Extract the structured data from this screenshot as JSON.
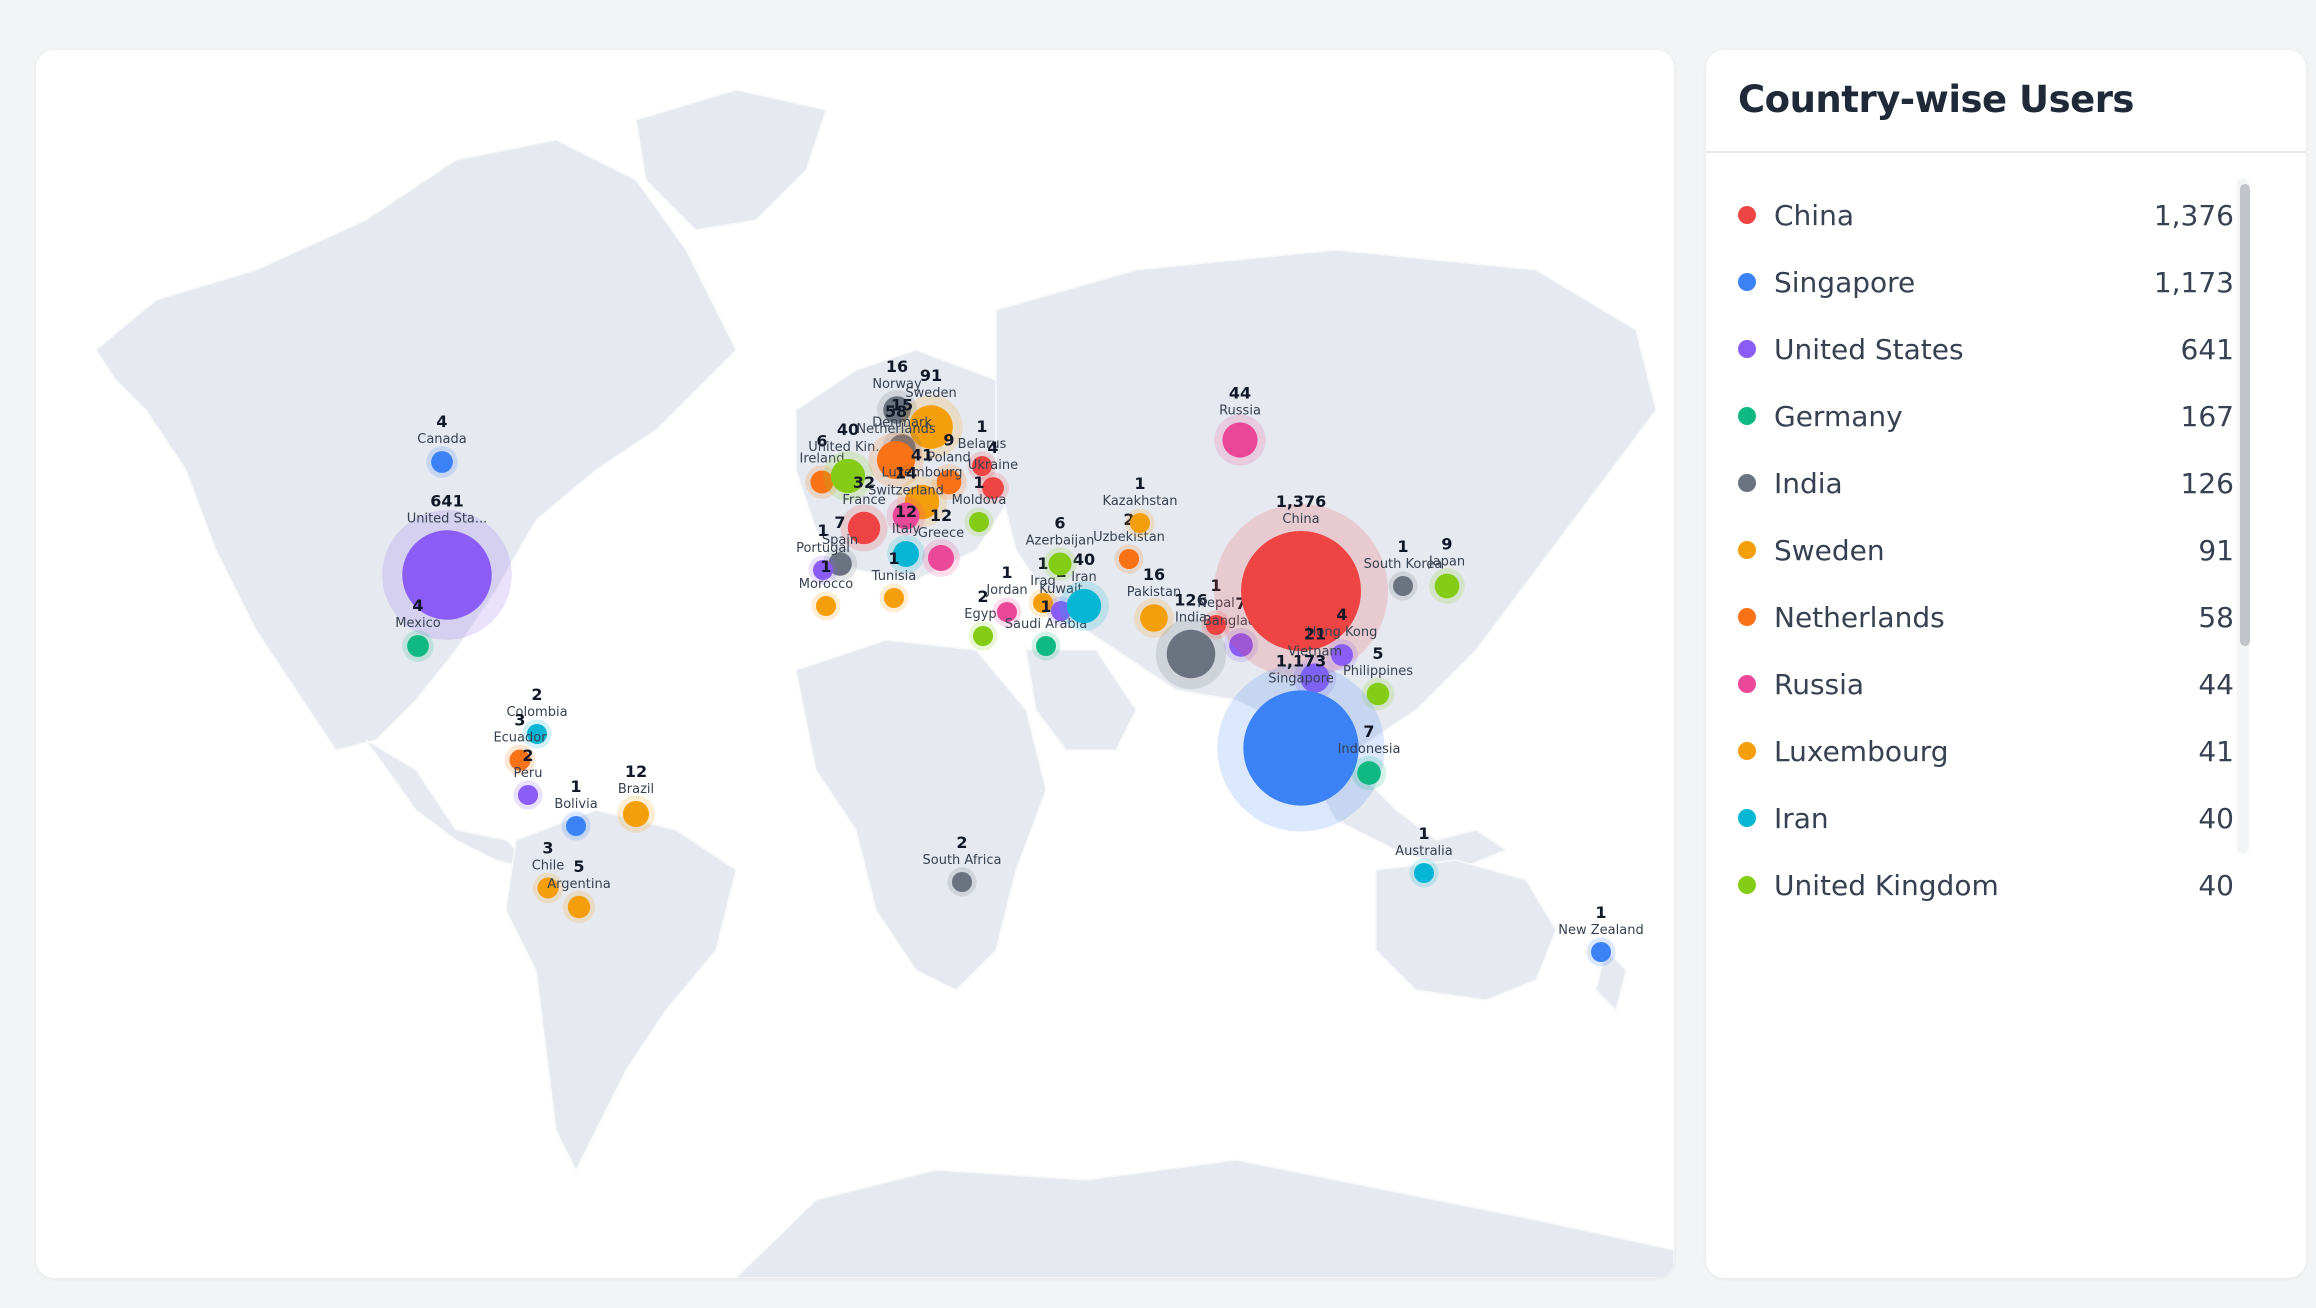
{
  "panel": {
    "title": "Country-wise Users",
    "items": [
      {
        "name": "China",
        "value": "1,376",
        "color": "#ef4444"
      },
      {
        "name": "Singapore",
        "value": "1,173",
        "color": "#3b82f6"
      },
      {
        "name": "United States",
        "value": "641",
        "color": "#8b5cf6"
      },
      {
        "name": "Germany",
        "value": "167",
        "color": "#10b981"
      },
      {
        "name": "India",
        "value": "126",
        "color": "#6b7280"
      },
      {
        "name": "Sweden",
        "value": "91",
        "color": "#f59e0b"
      },
      {
        "name": "Netherlands",
        "value": "58",
        "color": "#f97316"
      },
      {
        "name": "Russia",
        "value": "44",
        "color": "#ec4899"
      },
      {
        "name": "Luxembourg",
        "value": "41",
        "color": "#f59e0b"
      },
      {
        "name": "Iran",
        "value": "40",
        "color": "#06b6d4"
      },
      {
        "name": "United Kingdom",
        "value": "40",
        "color": "#84cc16"
      }
    ]
  },
  "map": {
    "bubbles": [
      {
        "name": "Canada",
        "value": "4",
        "color": "#3b82f6"
      },
      {
        "name": "United Sta...",
        "value": "641",
        "color": "#8b5cf6"
      },
      {
        "name": "Mexico",
        "value": "4",
        "color": "#10b981"
      },
      {
        "name": "Colombia",
        "value": "2",
        "color": "#06b6d4"
      },
      {
        "name": "Ecuador",
        "value": "3",
        "color": "#f97316"
      },
      {
        "name": "Peru",
        "value": "2",
        "color": "#8b5cf6"
      },
      {
        "name": "Bolivia",
        "value": "1",
        "color": "#3b82f6"
      },
      {
        "name": "Brazil",
        "value": "12",
        "color": "#f59e0b"
      },
      {
        "name": "Chile",
        "value": "3",
        "color": "#f59e0b"
      },
      {
        "name": "Argentina",
        "value": "5",
        "color": "#f59e0b"
      },
      {
        "name": "Norway",
        "value": "16",
        "color": "#6b7280"
      },
      {
        "name": "Sweden",
        "value": "91",
        "color": "#f59e0b"
      },
      {
        "name": "Denmark",
        "value": "15",
        "color": "#6b7280"
      },
      {
        "name": "Ireland",
        "value": "6",
        "color": "#f97316"
      },
      {
        "name": "United Kin...",
        "value": "40",
        "color": "#84cc16"
      },
      {
        "name": "Netherlands",
        "value": "58",
        "color": "#f97316"
      },
      {
        "name": "Belarus",
        "value": "1",
        "color": "#ef4444"
      },
      {
        "name": "Poland",
        "value": "9",
        "color": "#f97316"
      },
      {
        "name": "Ukraine",
        "value": "4",
        "color": "#ef4444"
      },
      {
        "name": "Luxembourg",
        "value": "41",
        "color": "#f59e0b"
      },
      {
        "name": "Switzerland",
        "value": "14",
        "color": "#ec4899"
      },
      {
        "name": "France",
        "value": "32",
        "color": "#ef4444"
      },
      {
        "name": "Spain",
        "value": "7",
        "color": "#6b7280"
      },
      {
        "name": "Portugal",
        "value": "1",
        "color": "#8b5cf6"
      },
      {
        "name": "Italy",
        "value": "12",
        "color": "#06b6d4"
      },
      {
        "name": "Moldova",
        "value": "1",
        "color": "#84cc16"
      },
      {
        "name": "Greece",
        "value": "12",
        "color": "#ec4899"
      },
      {
        "name": "Morocco",
        "value": "1",
        "color": "#f59e0b"
      },
      {
        "name": "Tunisia",
        "value": "1",
        "color": "#f59e0b"
      },
      {
        "name": "Egypt",
        "value": "2",
        "color": "#84cc16"
      },
      {
        "name": "Jordan",
        "value": "1",
        "color": "#ec4899"
      },
      {
        "name": "Iraq",
        "value": "1",
        "color": "#f59e0b"
      },
      {
        "name": "Kuwait",
        "value": "1",
        "color": "#8b5cf6"
      },
      {
        "name": "Saudi Arabia",
        "value": "1",
        "color": "#10b981"
      },
      {
        "name": "Iran",
        "value": "40",
        "color": "#06b6d4"
      },
      {
        "name": "Azerbaijan",
        "value": "6",
        "color": "#84cc16"
      },
      {
        "name": "Uzbekistan",
        "value": "2",
        "color": "#f97316"
      },
      {
        "name": "Kazakhstan",
        "value": "1",
        "color": "#f59e0b"
      },
      {
        "name": "Russia",
        "value": "44",
        "color": "#ec4899"
      },
      {
        "name": "Pakistan",
        "value": "16",
        "color": "#f59e0b"
      },
      {
        "name": "India",
        "value": "126",
        "color": "#6b7280"
      },
      {
        "name": "Nepal",
        "value": "1",
        "color": "#ef4444"
      },
      {
        "name": "Bangladesh",
        "value": "7",
        "color": "#8b5cf6"
      },
      {
        "name": "China",
        "value": "1,376",
        "color": "#ef4444"
      },
      {
        "name": "South Korea",
        "value": "1",
        "color": "#6b7280"
      },
      {
        "name": "Japan",
        "value": "9",
        "color": "#84cc16"
      },
      {
        "name": "Hong Kong",
        "value": "4",
        "color": "#8b5cf6"
      },
      {
        "name": "Vietnam",
        "value": "21",
        "color": "#8b5cf6"
      },
      {
        "name": "Philippines",
        "value": "5",
        "color": "#84cc16"
      },
      {
        "name": "Singapore",
        "value": "1,173",
        "color": "#3b82f6"
      },
      {
        "name": "Indonesia",
        "value": "7",
        "color": "#10b981"
      },
      {
        "name": "South Africa",
        "value": "2",
        "color": "#6b7280"
      },
      {
        "name": "Australia",
        "value": "1",
        "color": "#06b6d4"
      },
      {
        "name": "New Zealand",
        "value": "1",
        "color": "#3b82f6"
      }
    ]
  }
}
